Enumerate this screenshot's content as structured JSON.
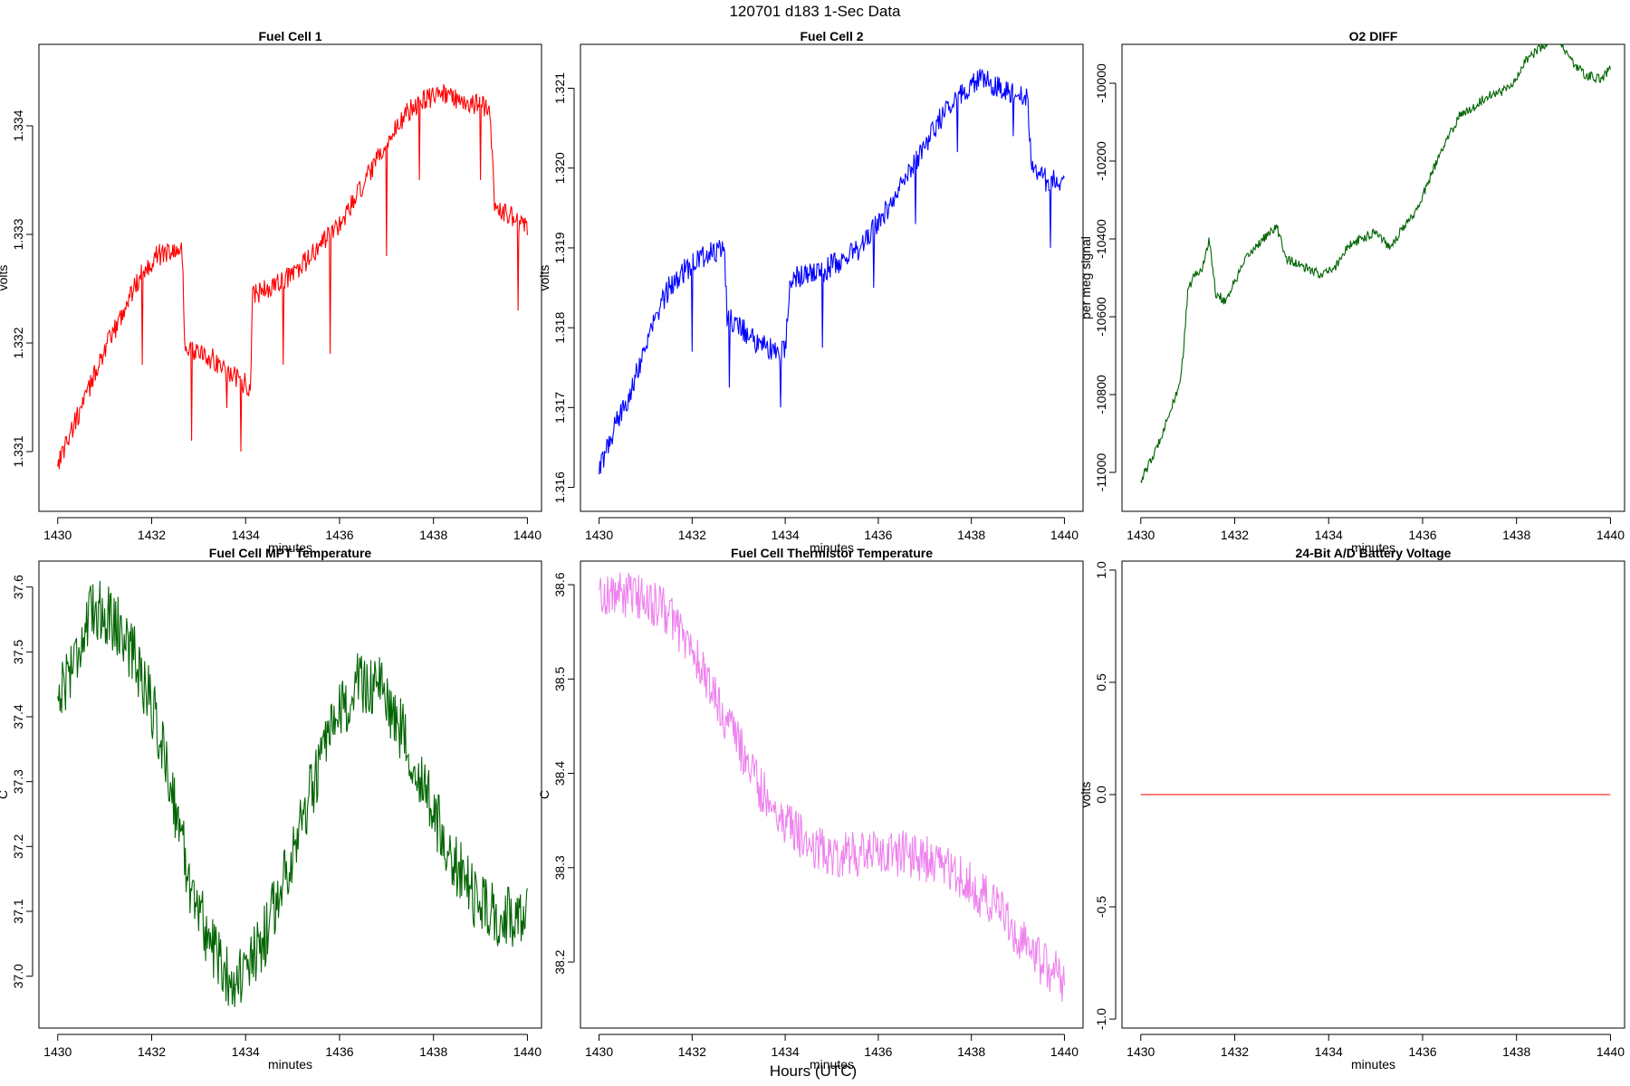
{
  "figure": {
    "title": "120701   d183   1-Sec Data",
    "xlabel": "Hours (UTC)"
  },
  "chart_data": [
    {
      "id": "fc1",
      "type": "line",
      "title": "Fuel Cell 1",
      "xlabel": "minutes",
      "ylabel": "volts",
      "xlim": [
        1429.6,
        1440.3
      ],
      "ylim": [
        1330.45,
        1334.75
      ],
      "xticks": [
        1430,
        1432,
        1434,
        1436,
        1438,
        1440
      ],
      "yticks": [
        1331,
        1332,
        1333,
        1334
      ],
      "ytick_labels": [
        "1.331",
        "1.332",
        "1.333",
        "1.334"
      ],
      "y_scale_note": "values in millivolts",
      "color": "#ff0000",
      "noise": 0.1,
      "series": [
        {
          "name": "",
          "x": [
            1430.0,
            1430.3,
            1430.6,
            1430.9,
            1431.2,
            1431.5,
            1431.8,
            1432.1,
            1432.4,
            1432.65,
            1432.7,
            1433.0,
            1433.3,
            1433.6,
            1433.9,
            1434.1,
            1434.15,
            1434.5,
            1434.9,
            1435.3,
            1435.7,
            1436.1,
            1436.5,
            1436.9,
            1437.3,
            1437.6,
            1437.9,
            1438.2,
            1438.5,
            1438.8,
            1439.0,
            1439.2,
            1439.3,
            1439.6,
            1439.8,
            1440.0
          ],
          "y": [
            1330.9,
            1331.2,
            1331.5,
            1331.85,
            1332.1,
            1332.4,
            1332.65,
            1332.8,
            1332.85,
            1332.85,
            1332.0,
            1331.9,
            1331.85,
            1331.75,
            1331.65,
            1331.6,
            1332.45,
            1332.5,
            1332.6,
            1332.75,
            1332.95,
            1333.15,
            1333.45,
            1333.75,
            1334.05,
            1334.2,
            1334.25,
            1334.3,
            1334.25,
            1334.2,
            1334.2,
            1334.15,
            1333.25,
            1333.2,
            1333.1,
            1333.05
          ]
        }
      ],
      "spikes": [
        [
          1431.8,
          1331.8
        ],
        [
          1432.85,
          1331.1
        ],
        [
          1433.6,
          1331.4
        ],
        [
          1433.9,
          1331.0
        ],
        [
          1434.8,
          1331.8
        ],
        [
          1435.8,
          1331.9
        ],
        [
          1437.0,
          1332.8
        ],
        [
          1437.7,
          1333.5
        ],
        [
          1439.0,
          1333.5
        ],
        [
          1439.8,
          1332.3
        ]
      ]
    },
    {
      "id": "fc2",
      "type": "line",
      "title": "Fuel Cell 2",
      "xlabel": "minutes",
      "ylabel": "volts",
      "xlim": [
        1429.6,
        1440.4
      ],
      "ylim": [
        1315.7,
        1321.55
      ],
      "xticks": [
        1430,
        1432,
        1434,
        1436,
        1438,
        1440
      ],
      "yticks": [
        1316,
        1317,
        1318,
        1319,
        1320,
        1321
      ],
      "ytick_labels": [
        "1.316",
        "1.317",
        "1.318",
        "1.319",
        "1.320",
        "1.321"
      ],
      "y_scale_note": "values in millivolts",
      "color": "#0000ff",
      "noise": 0.15,
      "series": [
        {
          "name": "",
          "x": [
            1430.0,
            1430.3,
            1430.6,
            1430.9,
            1431.2,
            1431.5,
            1431.8,
            1432.1,
            1432.4,
            1432.7,
            1432.75,
            1433.0,
            1433.3,
            1433.6,
            1433.9,
            1434.0,
            1434.1,
            1434.4,
            1434.8,
            1435.2,
            1435.6,
            1436.0,
            1436.4,
            1436.8,
            1437.2,
            1437.6,
            1437.9,
            1438.2,
            1438.5,
            1438.9,
            1439.2,
            1439.3,
            1439.6,
            1439.8,
            1440.0
          ],
          "y": [
            1316.2,
            1316.7,
            1317.1,
            1317.6,
            1318.1,
            1318.5,
            1318.7,
            1318.85,
            1318.95,
            1318.95,
            1318.1,
            1318.05,
            1317.85,
            1317.75,
            1317.7,
            1317.7,
            1318.6,
            1318.65,
            1318.7,
            1318.85,
            1319.0,
            1319.3,
            1319.7,
            1320.1,
            1320.5,
            1320.85,
            1321.0,
            1321.1,
            1321.05,
            1320.95,
            1320.9,
            1319.95,
            1319.85,
            1319.85,
            1319.8
          ]
        }
      ],
      "spikes": [
        [
          1432.0,
          1317.7
        ],
        [
          1432.8,
          1317.25
        ],
        [
          1433.9,
          1317.0
        ],
        [
          1434.8,
          1317.75
        ],
        [
          1435.9,
          1318.5
        ],
        [
          1436.8,
          1319.3
        ],
        [
          1437.7,
          1320.2
        ],
        [
          1438.9,
          1320.4
        ],
        [
          1439.7,
          1319.0
        ]
      ]
    },
    {
      "id": "o2",
      "type": "line",
      "title": "O2 DIFF",
      "xlabel": "minutes",
      "ylabel": "per meg signal",
      "xlim": [
        1429.6,
        1440.3
      ],
      "ylim": [
        -11100,
        -9900
      ],
      "xticks": [
        1430,
        1432,
        1434,
        1436,
        1438,
        1440
      ],
      "yticks": [
        -11000,
        -10800,
        -10600,
        -10400,
        -10200,
        -10000
      ],
      "ytick_labels": [
        "-11000",
        "-10800",
        "-10600",
        "-10400",
        "-10200",
        "-10000"
      ],
      "color": "#006400",
      "noise": 12,
      "series": [
        {
          "name": "",
          "x": [
            1430.0,
            1430.3,
            1430.6,
            1430.8,
            1430.9,
            1431.0,
            1431.1,
            1431.3,
            1431.45,
            1431.6,
            1431.8,
            1432.0,
            1432.3,
            1432.6,
            1432.9,
            1433.1,
            1433.4,
            1433.8,
            1434.1,
            1434.4,
            1434.7,
            1435.0,
            1435.3,
            1435.6,
            1435.9,
            1436.2,
            1436.5,
            1436.8,
            1437.1,
            1437.4,
            1437.7,
            1438.0,
            1438.2,
            1438.4,
            1438.6,
            1438.9,
            1439.2,
            1439.5,
            1439.8,
            1440.0
          ],
          "y": [
            -11020,
            -10950,
            -10850,
            -10790,
            -10700,
            -10540,
            -10500,
            -10480,
            -10400,
            -10540,
            -10560,
            -10510,
            -10440,
            -10400,
            -10370,
            -10450,
            -10470,
            -10490,
            -10480,
            -10420,
            -10400,
            -10380,
            -10420,
            -10370,
            -10320,
            -10230,
            -10150,
            -10080,
            -10060,
            -10030,
            -10020,
            -9990,
            -9940,
            -9920,
            -9900,
            -9890,
            -9950,
            -9980,
            -9990,
            -9960
          ]
        }
      ]
    },
    {
      "id": "mpt",
      "type": "line",
      "title": "Fuel Cell MPT Temperature",
      "xlabel": "minutes",
      "ylabel": "C",
      "xlim": [
        1429.6,
        1440.3
      ],
      "ylim": [
        36.92,
        37.64
      ],
      "xticks": [
        1430,
        1432,
        1434,
        1436,
        1438,
        1440
      ],
      "yticks": [
        37.0,
        37.1,
        37.2,
        37.3,
        37.4,
        37.5,
        37.6
      ],
      "ytick_labels": [
        "37.0",
        "37.1",
        "37.2",
        "37.3",
        "37.4",
        "37.5",
        "37.6"
      ],
      "color": "#006400",
      "noise": 0.05,
      "series": [
        {
          "name": "",
          "x": [
            1430.0,
            1430.4,
            1430.8,
            1431.2,
            1431.6,
            1432.0,
            1432.4,
            1432.8,
            1433.2,
            1433.6,
            1434.0,
            1434.4,
            1434.8,
            1435.2,
            1435.6,
            1436.0,
            1436.4,
            1436.8,
            1437.2,
            1437.6,
            1438.0,
            1438.4,
            1438.8,
            1439.2,
            1439.6,
            1440.0
          ],
          "y": [
            37.43,
            37.5,
            37.57,
            37.55,
            37.5,
            37.42,
            37.3,
            37.15,
            37.06,
            37.0,
            37.0,
            37.06,
            37.15,
            37.24,
            37.33,
            37.4,
            37.45,
            37.45,
            37.4,
            37.33,
            37.25,
            37.18,
            37.13,
            37.1,
            37.09,
            37.1
          ]
        }
      ]
    },
    {
      "id": "therm",
      "type": "line",
      "title": "Fuel Cell Thermistor Temperature",
      "xlabel": "minutes",
      "ylabel": "C",
      "xlim": [
        1429.6,
        1440.4
      ],
      "ylim": [
        38.13,
        38.625
      ],
      "xticks": [
        1430,
        1432,
        1434,
        1436,
        1438,
        1440
      ],
      "yticks": [
        38.2,
        38.3,
        38.4,
        38.5,
        38.6
      ],
      "ytick_labels": [
        "38.2",
        "38.3",
        "38.4",
        "38.5",
        "38.6"
      ],
      "color": "#ee82ee",
      "noise": 0.025,
      "series": [
        {
          "name": "",
          "x": [
            1430.0,
            1430.5,
            1431.0,
            1431.5,
            1432.0,
            1432.5,
            1433.0,
            1433.5,
            1434.0,
            1434.5,
            1435.0,
            1435.5,
            1436.0,
            1436.5,
            1437.0,
            1437.5,
            1438.0,
            1438.5,
            1439.0,
            1439.5,
            1440.0
          ],
          "y": [
            38.59,
            38.59,
            38.585,
            38.57,
            38.53,
            38.48,
            38.43,
            38.38,
            38.35,
            38.325,
            38.315,
            38.315,
            38.315,
            38.315,
            38.31,
            38.3,
            38.28,
            38.26,
            38.23,
            38.2,
            38.18
          ]
        }
      ]
    },
    {
      "id": "batt",
      "type": "line",
      "title": "24-Bit A/D Battery Voltage",
      "xlabel": "minutes",
      "ylabel": "volts",
      "xlim": [
        1429.6,
        1440.3
      ],
      "ylim": [
        -1.04,
        1.04
      ],
      "xticks": [
        1430,
        1432,
        1434,
        1436,
        1438,
        1440
      ],
      "yticks": [
        -1.0,
        -0.5,
        0.0,
        0.5,
        1.0
      ],
      "ytick_labels": [
        "-1.0",
        "-0.5",
        "0.0",
        "0.5",
        "1.0"
      ],
      "color": "#ff0000",
      "noise": 0,
      "series": [
        {
          "name": "",
          "x": [
            1430.0,
            1440.0
          ],
          "y": [
            0.0,
            0.0
          ]
        }
      ]
    }
  ]
}
